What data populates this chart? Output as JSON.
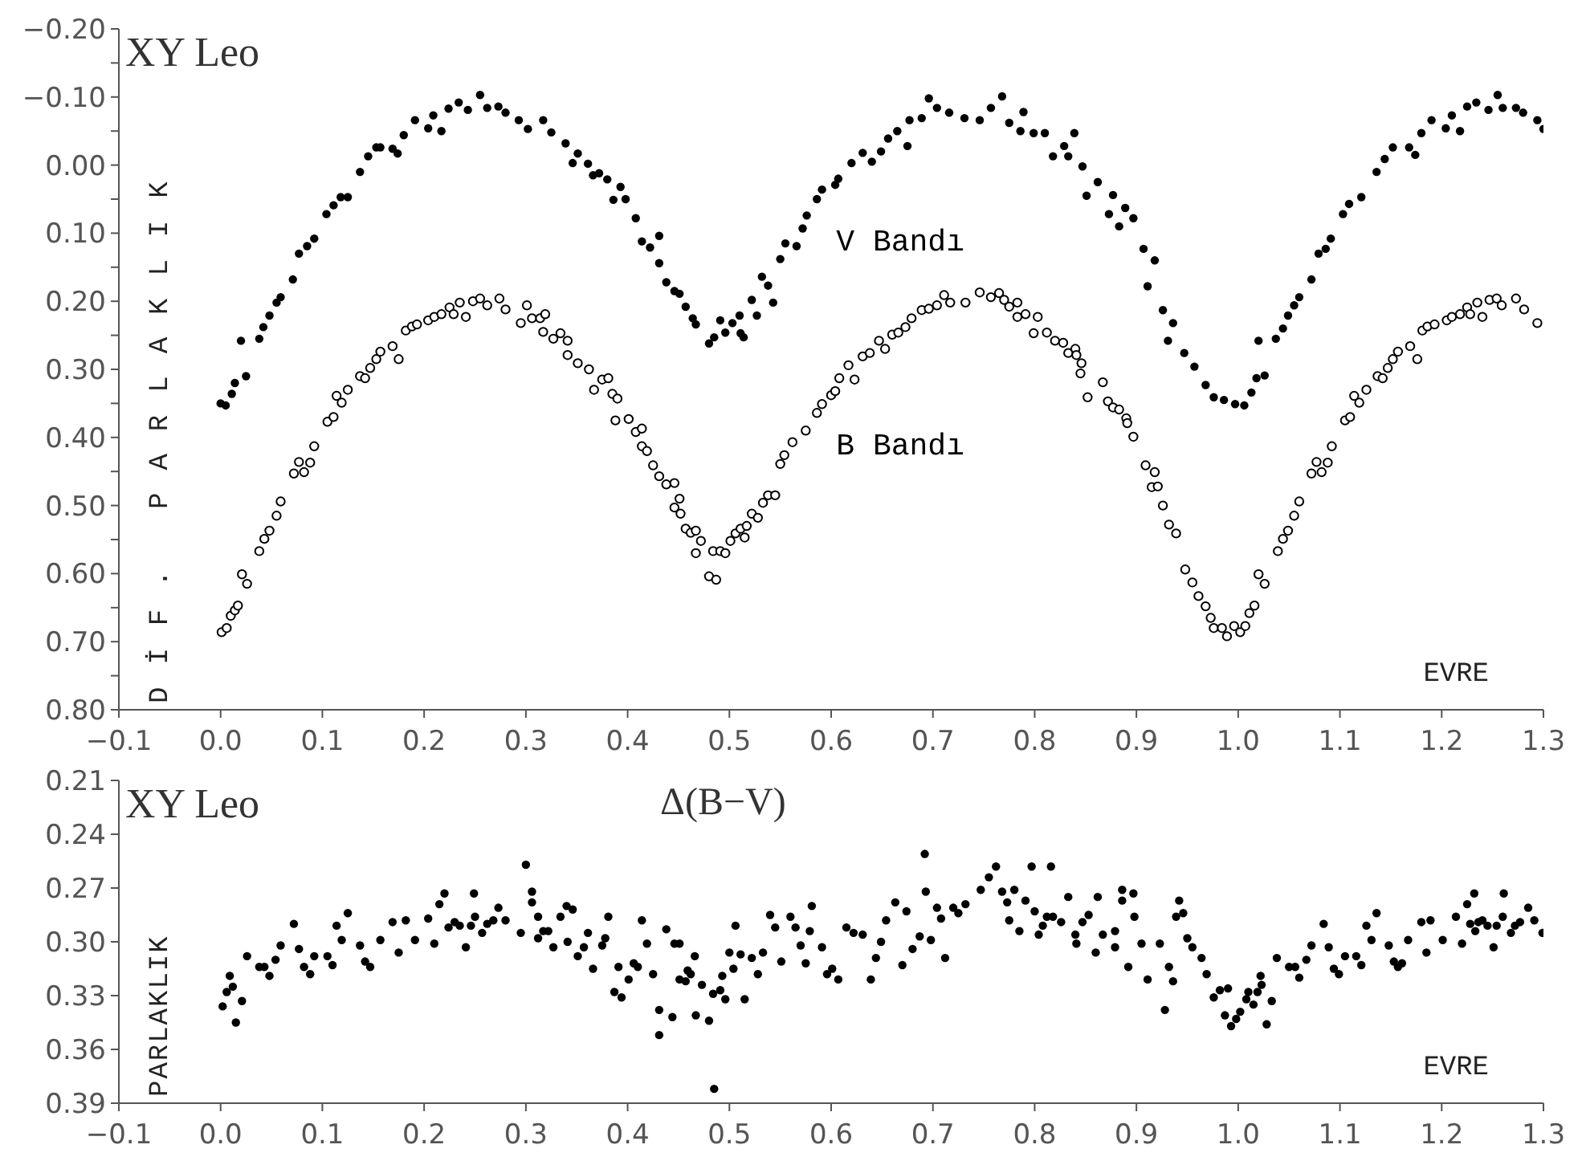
{
  "chart_data": [
    {
      "type": "scatter",
      "title": "XY Leo",
      "xlabel": "EVRE",
      "ylabel": "DİF. PARLAKLIK",
      "marker": "circle",
      "xlim": [
        -0.1,
        1.3
      ],
      "xticks": [
        {
          "value": -0.1,
          "label": "−0.1"
        },
        {
          "value": 0,
          "label": "0.0"
        },
        0.1,
        0.2,
        0.3,
        0.4,
        0.5,
        0.6,
        0.7,
        0.8,
        0.9,
        {
          "value": 1,
          "label": "1.0"
        },
        1.1,
        1.2,
        1.3
      ],
      "ylim": [
        0.8,
        -0.2
      ],
      "yticks": [
        {
          "value": -0.2,
          "label": "−0.20"
        },
        {
          "value": -0.15,
          "label": null
        },
        {
          "value": -0.1,
          "label": "−0.10"
        },
        {
          "value": -0.05,
          "label": null
        },
        {
          "value": 0,
          "label": "0.00"
        },
        {
          "value": 0.05,
          "label": null
        },
        {
          "value": 0.1,
          "label": "0.10"
        },
        {
          "value": 0.15,
          "label": null
        },
        {
          "value": 0.2,
          "label": "0.20"
        },
        {
          "value": 0.25,
          "label": null
        },
        {
          "value": 0.3,
          "label": "0.30"
        },
        {
          "value": 0.35,
          "label": null
        },
        {
          "value": 0.4,
          "label": "0.40"
        },
        {
          "value": 0.45,
          "label": null
        },
        {
          "value": 0.5,
          "label": "0.50"
        },
        {
          "value": 0.55,
          "label": null
        },
        {
          "value": 0.6,
          "label": "0.60"
        },
        {
          "value": 0.65,
          "label": null
        },
        {
          "value": 0.7,
          "label": "0.70"
        },
        {
          "value": 0.75,
          "label": null
        },
        {
          "value": 0.8,
          "label": "0.80"
        }
      ],
      "series": [
        {
          "name": "V Bandı",
          "color": "#000000",
          "x": [
            0.0,
            0.005,
            0.011,
            0.014,
            0.025,
            0.02,
            0.038,
            0.042,
            0.048,
            0.055,
            0.059,
            0.071,
            0.077,
            0.085,
            0.092,
            0.104,
            0.111,
            0.118,
            0.125,
            0.137,
            0.145,
            0.153,
            0.157,
            0.169,
            0.174,
            0.18,
            0.191,
            0.204,
            0.209,
            0.217,
            0.224,
            0.234,
            0.243,
            0.255,
            0.262,
            0.273,
            0.28,
            0.293,
            0.302,
            0.317,
            0.325,
            0.339,
            0.346,
            0.351,
            0.361,
            0.366,
            0.372,
            0.38,
            0.386,
            0.393,
            0.398,
            0.408,
            0.414,
            0.422,
            0.431,
            0.431,
            0.438,
            0.446,
            0.451,
            0.457,
            0.464,
            0.467,
            0.48,
            0.485,
            0.491,
            0.496,
            0.503,
            0.511,
            0.51,
            0.514,
            0.522,
            0.527,
            0.532,
            0.538,
            0.543,
            0.55,
            0.555,
            0.566,
            0.572,
            0.576,
            0.586,
            0.591,
            0.604,
            0.607,
            0.62,
            0.631,
            0.64,
            0.649,
            0.656,
            0.665,
            0.675,
            0.677,
            0.689,
            0.696,
            0.704,
            0.716,
            0.731,
            0.746,
            0.757,
            0.768,
            0.775,
            0.789,
            0.786,
            0.799,
            0.81,
            0.818,
            0.829,
            0.839,
            0.833,
            0.847,
            0.851,
            0.862,
            0.873,
            0.877,
            0.883,
            0.889,
            0.897,
            0.907,
            0.918,
            0.911,
            0.926,
            0.936,
            0.931,
            0.947,
            0.957,
            0.968,
            0.976,
            0.986,
            0.997,
            1.006,
            1.013,
            1.018,
            1.026,
            1.02,
            1.037,
            1.044,
            1.049,
            1.055,
            1.06,
            1.072,
            1.079,
            1.086,
            1.091,
            1.103,
            1.109,
            1.121,
            1.136,
            1.144,
            1.152,
            1.168,
            1.174,
            1.18,
            1.19,
            1.204,
            1.21,
            1.218,
            1.225,
            1.234,
            1.246,
            1.255,
            1.26,
            1.273,
            1.28,
            1.294,
            1.3
          ],
          "values": [
            0.35,
            0.353,
            0.336,
            0.32,
            0.31,
            0.258,
            0.255,
            0.238,
            0.221,
            0.202,
            0.194,
            0.168,
            0.13,
            0.119,
            0.108,
            0.072,
            0.059,
            0.047,
            0.047,
            0.01,
            -0.013,
            -0.026,
            -0.026,
            -0.024,
            -0.017,
            -0.044,
            -0.066,
            -0.054,
            -0.073,
            -0.05,
            -0.083,
            -0.092,
            -0.081,
            -0.103,
            -0.084,
            -0.086,
            -0.077,
            -0.066,
            -0.053,
            -0.066,
            -0.048,
            -0.032,
            -0.003,
            -0.017,
            -0.002,
            0.015,
            0.012,
            0.021,
            0.051,
            0.032,
            0.05,
            0.078,
            0.112,
            0.121,
            0.104,
            0.144,
            0.172,
            0.185,
            0.189,
            0.208,
            0.225,
            0.234,
            0.262,
            0.253,
            0.228,
            0.246,
            0.232,
            0.247,
            0.221,
            0.253,
            0.198,
            0.221,
            0.164,
            0.177,
            0.202,
            0.138,
            0.115,
            0.119,
            0.093,
            0.074,
            0.05,
            0.036,
            0.029,
            0.02,
            -0.003,
            -0.018,
            -0.005,
            -0.02,
            -0.039,
            -0.05,
            -0.028,
            -0.066,
            -0.069,
            -0.098,
            -0.084,
            -0.077,
            -0.069,
            -0.066,
            -0.084,
            -0.101,
            -0.062,
            -0.078,
            -0.05,
            -0.047,
            -0.047,
            -0.013,
            -0.028,
            -0.047,
            -0.013,
            0.002,
            0.045,
            0.025,
            0.072,
            0.044,
            0.09,
            0.063,
            0.078,
            0.123,
            0.14,
            0.178,
            0.213,
            0.232,
            0.258,
            0.276,
            0.296,
            0.323,
            0.341,
            0.345,
            0.351,
            0.353,
            0.334,
            0.313,
            0.309,
            0.258,
            0.255,
            0.24,
            0.221,
            0.206,
            0.194,
            0.168,
            0.13,
            0.123,
            0.108,
            0.072,
            0.057,
            0.047,
            0.01,
            -0.009,
            -0.026,
            -0.026,
            -0.015,
            -0.047,
            -0.066,
            -0.054,
            -0.073,
            -0.05,
            -0.086,
            -0.092,
            -0.081,
            -0.103,
            -0.084,
            -0.084,
            -0.077,
            -0.066,
            -0.053
          ]
        },
        {
          "name": "B Bandı",
          "color": "#000000",
          "x": [
            0.001,
            0.006,
            0.01,
            0.014,
            0.017,
            0.021,
            0.026,
            0.038,
            0.043,
            0.048,
            0.055,
            0.059,
            0.072,
            0.077,
            0.082,
            0.088,
            0.092,
            0.105,
            0.111,
            0.114,
            0.119,
            0.125,
            0.137,
            0.142,
            0.147,
            0.153,
            0.157,
            0.169,
            0.175,
            0.182,
            0.188,
            0.193,
            0.204,
            0.21,
            0.217,
            0.225,
            0.229,
            0.235,
            0.241,
            0.248,
            0.255,
            0.262,
            0.274,
            0.28,
            0.295,
            0.301,
            0.306,
            0.314,
            0.319,
            0.317,
            0.327,
            0.334,
            0.341,
            0.341,
            0.351,
            0.362,
            0.367,
            0.375,
            0.381,
            0.385,
            0.39,
            0.388,
            0.401,
            0.408,
            0.414,
            0.414,
            0.419,
            0.425,
            0.431,
            0.438,
            0.446,
            0.451,
            0.446,
            0.452,
            0.457,
            0.462,
            0.467,
            0.467,
            0.472,
            0.48,
            0.487,
            0.484,
            0.491,
            0.496,
            0.501,
            0.506,
            0.511,
            0.517,
            0.515,
            0.522,
            0.528,
            0.533,
            0.538,
            0.545,
            0.55,
            0.554,
            0.562,
            0.575,
            0.586,
            0.591,
            0.6,
            0.604,
            0.608,
            0.617,
            0.623,
            0.631,
            0.638,
            0.647,
            0.653,
            0.66,
            0.666,
            0.673,
            0.679,
            0.689,
            0.696,
            0.704,
            0.711,
            0.717,
            0.732,
            0.746,
            0.757,
            0.765,
            0.77,
            0.775,
            0.783,
            0.783,
            0.791,
            0.799,
            0.803,
            0.812,
            0.82,
            0.828,
            0.833,
            0.84,
            0.841,
            0.846,
            0.845,
            0.852,
            0.867,
            0.872,
            0.877,
            0.883,
            0.89,
            0.891,
            0.897,
            0.909,
            0.918,
            0.915,
            0.921,
            0.926,
            0.932,
            0.939,
            0.948,
            0.955,
            0.961,
            0.968,
            0.973,
            0.976,
            0.984,
            0.989,
            0.996,
            1.002,
            1.007,
            1.011,
            1.016,
            1.02,
            1.026,
            1.039,
            1.044,
            1.049,
            1.055,
            1.06,
            1.072,
            1.077,
            1.082,
            1.088,
            1.092,
            1.105,
            1.11,
            1.114,
            1.119,
            1.126,
            1.137,
            1.142,
            1.147,
            1.152,
            1.157,
            1.169,
            1.176,
            1.181,
            1.186,
            1.193,
            1.205,
            1.21,
            1.218,
            1.225,
            1.228,
            1.235,
            1.24,
            1.247,
            1.254,
            1.259,
            1.273,
            1.281,
            1.294
          ],
          "values": [
            0.686,
            0.68,
            0.662,
            0.654,
            0.647,
            0.601,
            0.615,
            0.567,
            0.549,
            0.537,
            0.515,
            0.494,
            0.453,
            0.436,
            0.451,
            0.437,
            0.413,
            0.377,
            0.37,
            0.339,
            0.349,
            0.33,
            0.31,
            0.313,
            0.298,
            0.285,
            0.274,
            0.266,
            0.285,
            0.243,
            0.237,
            0.234,
            0.228,
            0.223,
            0.219,
            0.209,
            0.219,
            0.202,
            0.223,
            0.2,
            0.196,
            0.206,
            0.196,
            0.212,
            0.232,
            0.206,
            0.225,
            0.225,
            0.219,
            0.245,
            0.255,
            0.247,
            0.258,
            0.279,
            0.291,
            0.3,
            0.33,
            0.315,
            0.313,
            0.336,
            0.343,
            0.375,
            0.373,
            0.392,
            0.387,
            0.413,
            0.42,
            0.441,
            0.457,
            0.469,
            0.467,
            0.49,
            0.503,
            0.512,
            0.534,
            0.54,
            0.537,
            0.57,
            0.552,
            0.604,
            0.609,
            0.567,
            0.567,
            0.57,
            0.552,
            0.541,
            0.534,
            0.53,
            0.547,
            0.512,
            0.518,
            0.496,
            0.485,
            0.485,
            0.439,
            0.426,
            0.407,
            0.39,
            0.364,
            0.351,
            0.338,
            0.332,
            0.313,
            0.294,
            0.315,
            0.281,
            0.276,
            0.258,
            0.27,
            0.249,
            0.246,
            0.238,
            0.225,
            0.213,
            0.211,
            0.206,
            0.191,
            0.202,
            0.202,
            0.187,
            0.194,
            0.188,
            0.198,
            0.208,
            0.202,
            0.223,
            0.219,
            0.247,
            0.223,
            0.246,
            0.258,
            0.261,
            0.276,
            0.27,
            0.279,
            0.291,
            0.306,
            0.341,
            0.319,
            0.347,
            0.356,
            0.359,
            0.372,
            0.379,
            0.399,
            0.441,
            0.451,
            0.473,
            0.472,
            0.5,
            0.528,
            0.541,
            0.594,
            0.613,
            0.633,
            0.648,
            0.665,
            0.68,
            0.68,
            0.692,
            0.677,
            0.686,
            0.677,
            0.658,
            0.647,
            0.601,
            0.615,
            0.567,
            0.549,
            0.537,
            0.515,
            0.494,
            0.453,
            0.436,
            0.451,
            0.437,
            0.413,
            0.375,
            0.37,
            0.339,
            0.349,
            0.33,
            0.31,
            0.313,
            0.298,
            0.285,
            0.274,
            0.266,
            0.285,
            0.243,
            0.237,
            0.234,
            0.228,
            0.223,
            0.219,
            0.209,
            0.219,
            0.202,
            0.223,
            0.198,
            0.196,
            0.206,
            0.196,
            0.212,
            0.232
          ]
        }
      ]
    },
    {
      "type": "scatter",
      "title": "XY Leo",
      "subtitle": "Δ(B−V)",
      "xlabel": "EVRE",
      "ylabel": "PARLAKLIK",
      "marker": "circle",
      "xlim": [
        -0.1,
        1.3
      ],
      "xticks": [
        {
          "value": -0.1,
          "label": "−0.1"
        },
        {
          "value": 0,
          "label": "0.0"
        },
        0.1,
        0.2,
        0.3,
        0.4,
        0.5,
        0.6,
        0.7,
        0.8,
        0.9,
        {
          "value": 1,
          "label": "1.0"
        },
        1.1,
        1.2,
        1.3
      ],
      "ylim": [
        0.39,
        0.21
      ],
      "yticks": [
        0.21,
        0.24,
        0.27,
        {
          "value": 0.3,
          "label": "0.30"
        },
        0.33,
        0.36,
        0.39
      ],
      "series": [
        {
          "color": "#000000",
          "x": [
            0.002,
            0.006,
            0.009,
            0.012,
            0.015,
            0.021,
            0.026,
            0.038,
            0.043,
            0.048,
            0.054,
            0.059,
            0.072,
            0.077,
            0.082,
            0.088,
            0.092,
            0.105,
            0.11,
            0.114,
            0.119,
            0.125,
            0.137,
            0.142,
            0.147,
            0.157,
            0.169,
            0.175,
            0.182,
            0.191,
            0.204,
            0.21,
            0.215,
            0.22,
            0.224,
            0.23,
            0.235,
            0.241,
            0.246,
            0.249,
            0.25,
            0.257,
            0.262,
            0.268,
            0.273,
            0.28,
            0.295,
            0.3,
            0.306,
            0.306,
            0.312,
            0.312,
            0.317,
            0.322,
            0.327,
            0.334,
            0.34,
            0.341,
            0.346,
            0.351,
            0.357,
            0.361,
            0.366,
            0.375,
            0.378,
            0.381,
            0.387,
            0.391,
            0.394,
            0.401,
            0.406,
            0.41,
            0.414,
            0.419,
            0.425,
            0.431,
            0.431,
            0.438,
            0.444,
            0.446,
            0.451,
            0.451,
            0.457,
            0.459,
            0.462,
            0.466,
            0.467,
            0.473,
            0.48,
            0.484,
            0.485,
            0.491,
            0.493,
            0.496,
            0.5,
            0.504,
            0.506,
            0.511,
            0.515,
            0.522,
            0.528,
            0.533,
            0.54,
            0.545,
            0.551,
            0.56,
            0.565,
            0.57,
            0.575,
            0.579,
            0.581,
            0.591,
            0.596,
            0.601,
            0.607,
            0.615,
            0.622,
            0.631,
            0.639,
            0.644,
            0.649,
            0.654,
            0.663,
            0.67,
            0.674,
            0.68,
            0.687,
            0.692,
            0.693,
            0.698,
            0.704,
            0.708,
            0.712,
            0.72,
            0.725,
            0.732,
            0.747,
            0.755,
            0.762,
            0.768,
            0.773,
            0.78,
            0.775,
            0.785,
            0.791,
            0.797,
            0.8,
            0.804,
            0.808,
            0.812,
            0.816,
            0.818,
            0.826,
            0.833,
            0.84,
            0.841,
            0.847,
            0.853,
            0.86,
            0.862,
            0.867,
            0.879,
            0.879,
            0.886,
            0.886,
            0.892,
            0.897,
            0.898,
            0.905,
            0.911,
            0.923,
            0.928,
            0.932,
            0.936,
            0.939,
            0.942,
            0.946,
            0.95,
            0.955,
            0.964,
            0.969,
            0.976,
            0.982,
            0.987,
            0.99,
            0.993,
            0.998,
            1.002,
            1.008,
            1.01,
            1.015,
            1.019,
            1.022,
            1.023,
            1.028,
            1.033,
            1.038,
            1.05,
            1.056,
            1.06,
            1.067,
            1.072,
            1.084,
            1.089,
            1.094,
            1.099,
            1.105,
            1.116,
            1.121,
            1.126,
            1.131,
            1.136,
            1.148,
            1.153,
            1.157,
            1.161,
            1.167,
            1.18,
            1.185,
            1.189,
            1.201,
            1.214,
            1.22,
            1.225,
            1.228,
            1.232,
            1.233,
            1.236,
            1.24,
            1.245,
            1.251,
            1.254,
            1.26,
            1.261,
            1.268,
            1.272,
            1.277,
            1.285,
            1.291,
            1.299
          ],
          "values": [
            0.336,
            0.328,
            0.319,
            0.325,
            0.345,
            0.333,
            0.308,
            0.314,
            0.314,
            0.319,
            0.31,
            0.302,
            0.29,
            0.304,
            0.314,
            0.318,
            0.308,
            0.308,
            0.313,
            0.291,
            0.299,
            0.284,
            0.302,
            0.311,
            0.314,
            0.299,
            0.289,
            0.306,
            0.288,
            0.299,
            0.287,
            0.301,
            0.279,
            0.273,
            0.292,
            0.289,
            0.291,
            0.303,
            0.291,
            0.273,
            0.286,
            0.295,
            0.29,
            0.288,
            0.281,
            0.288,
            0.295,
            0.257,
            0.272,
            0.278,
            0.286,
            0.298,
            0.294,
            0.294,
            0.303,
            0.286,
            0.28,
            0.3,
            0.282,
            0.308,
            0.303,
            0.295,
            0.315,
            0.302,
            0.298,
            0.286,
            0.328,
            0.314,
            0.331,
            0.321,
            0.312,
            0.314,
            0.288,
            0.301,
            0.318,
            0.338,
            0.352,
            0.293,
            0.342,
            0.301,
            0.301,
            0.321,
            0.322,
            0.316,
            0.318,
            0.308,
            0.341,
            0.324,
            0.344,
            0.329,
            0.382,
            0.327,
            0.319,
            0.332,
            0.306,
            0.315,
            0.291,
            0.307,
            0.332,
            0.309,
            0.318,
            0.306,
            0.285,
            0.292,
            0.311,
            0.286,
            0.292,
            0.302,
            0.312,
            0.294,
            0.28,
            0.303,
            0.318,
            0.315,
            0.321,
            0.292,
            0.295,
            0.296,
            0.321,
            0.309,
            0.3,
            0.288,
            0.278,
            0.313,
            0.283,
            0.304,
            0.297,
            0.251,
            0.272,
            0.299,
            0.281,
            0.287,
            0.309,
            0.281,
            0.284,
            0.279,
            0.271,
            0.264,
            0.258,
            0.272,
            0.278,
            0.271,
            0.288,
            0.294,
            0.277,
            0.258,
            0.283,
            0.296,
            0.291,
            0.286,
            0.258,
            0.286,
            0.289,
            0.275,
            0.296,
            0.301,
            0.289,
            0.285,
            0.306,
            0.275,
            0.296,
            0.294,
            0.303,
            0.271,
            0.277,
            0.314,
            0.273,
            0.286,
            0.301,
            0.321,
            0.301,
            0.338,
            0.314,
            0.322,
            0.286,
            0.277,
            0.284,
            0.298,
            0.303,
            0.309,
            0.318,
            0.331,
            0.327,
            0.341,
            0.326,
            0.347,
            0.343,
            0.339,
            0.332,
            0.328,
            0.335,
            0.328,
            0.319,
            0.324,
            0.346,
            0.333,
            0.309,
            0.314,
            0.314,
            0.32,
            0.31,
            0.302,
            0.29,
            0.303,
            0.315,
            0.318,
            0.308,
            0.308,
            0.313,
            0.291,
            0.299,
            0.284,
            0.302,
            0.311,
            0.314,
            0.312,
            0.299,
            0.289,
            0.306,
            0.288,
            0.299,
            0.286,
            0.301,
            0.279,
            0.29,
            0.273,
            0.294,
            0.289,
            0.288,
            0.291,
            0.303,
            0.291,
            0.286,
            0.273,
            0.295,
            0.291,
            0.289,
            0.281,
            0.288,
            0.295
          ]
        }
      ]
    }
  ]
}
